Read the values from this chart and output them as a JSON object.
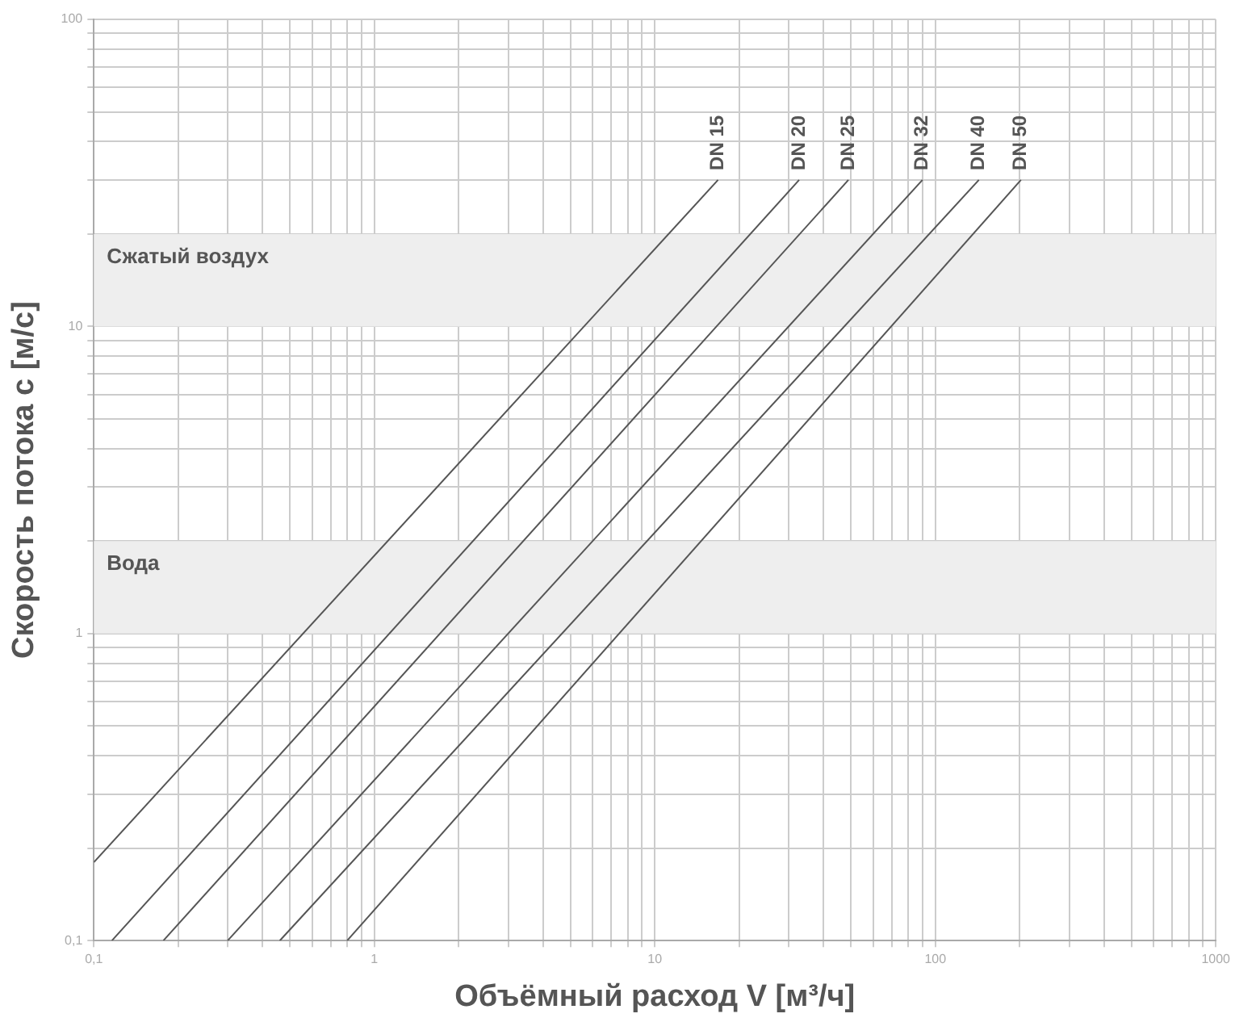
{
  "chart_data": {
    "type": "line",
    "xlabel": "Объёмный расход V [м³/ч]",
    "ylabel": "Скорость потока с [м/с]",
    "log": "xy",
    "grid": true,
    "marker": "none",
    "line_style": "solid",
    "xlim": [
      0.1,
      1000
    ],
    "xticks": [
      {
        "value": 0.1,
        "label": "0,1"
      },
      {
        "value": 0.2,
        "label": null
      },
      {
        "value": 0.3,
        "label": null
      },
      {
        "value": 0.4,
        "label": null
      },
      {
        "value": 0.5,
        "label": null
      },
      {
        "value": 0.6,
        "label": null
      },
      {
        "value": 0.7,
        "label": null
      },
      {
        "value": 0.8,
        "label": null
      },
      {
        "value": 0.9,
        "label": null
      },
      1,
      {
        "value": 2,
        "label": null
      },
      {
        "value": 3,
        "label": null
      },
      {
        "value": 4,
        "label": null
      },
      {
        "value": 5,
        "label": null
      },
      {
        "value": 6,
        "label": null
      },
      {
        "value": 7,
        "label": null
      },
      {
        "value": 8,
        "label": null
      },
      {
        "value": 9,
        "label": null
      },
      10,
      {
        "value": 20,
        "label": null
      },
      {
        "value": 30,
        "label": null
      },
      {
        "value": 40,
        "label": null
      },
      {
        "value": 50,
        "label": null
      },
      {
        "value": 60,
        "label": null
      },
      {
        "value": 70,
        "label": null
      },
      {
        "value": 80,
        "label": null
      },
      {
        "value": 90,
        "label": null
      },
      100,
      {
        "value": 200,
        "label": null
      },
      {
        "value": 300,
        "label": null
      },
      {
        "value": 400,
        "label": null
      },
      {
        "value": 500,
        "label": null
      },
      {
        "value": 600,
        "label": null
      },
      {
        "value": 700,
        "label": null
      },
      {
        "value": 800,
        "label": null
      },
      {
        "value": 900,
        "label": null
      },
      1000
    ],
    "ylim": [
      0.1,
      100
    ],
    "yticks": [
      {
        "value": 0.1,
        "label": "0,1"
      },
      {
        "value": 0.2,
        "label": null
      },
      {
        "value": 0.3,
        "label": null
      },
      {
        "value": 0.4,
        "label": null
      },
      {
        "value": 0.5,
        "label": null
      },
      {
        "value": 0.6,
        "label": null
      },
      {
        "value": 0.7,
        "label": null
      },
      {
        "value": 0.8,
        "label": null
      },
      {
        "value": 0.9,
        "label": null
      },
      1,
      {
        "value": 2,
        "label": null
      },
      {
        "value": 3,
        "label": null
      },
      {
        "value": 4,
        "label": null
      },
      {
        "value": 5,
        "label": null
      },
      {
        "value": 6,
        "label": null
      },
      {
        "value": 7,
        "label": null
      },
      {
        "value": 8,
        "label": null
      },
      {
        "value": 9,
        "label": null
      },
      10,
      {
        "value": 20,
        "label": null
      },
      {
        "value": 30,
        "label": null
      },
      {
        "value": 40,
        "label": null
      },
      {
        "value": 50,
        "label": null
      },
      {
        "value": 60,
        "label": null
      },
      {
        "value": 70,
        "label": null
      },
      {
        "value": 80,
        "label": null
      },
      {
        "value": 90,
        "label": null
      },
      100
    ],
    "bands": [
      {
        "axis": "y",
        "from": 10,
        "to": 20,
        "label": "Сжатый воздух",
        "color": "#eeeeee"
      },
      {
        "axis": "y",
        "from": 1,
        "to": 2,
        "label": "Вода",
        "color": "#eeeeee"
      }
    ],
    "series": [
      {
        "name": "DN 15",
        "color": "#555555",
        "x": [
          0.1,
          16.8
        ],
        "values": [
          0.18,
          30
        ]
      },
      {
        "name": "DN 20",
        "color": "#555555",
        "x": [
          0.116,
          32.7
        ],
        "values": [
          0.1,
          30
        ]
      },
      {
        "name": "DN 25",
        "color": "#555555",
        "x": [
          0.177,
          49
        ],
        "values": [
          0.1,
          30
        ]
      },
      {
        "name": "DN 32",
        "color": "#555555",
        "x": [
          0.3,
          90
        ],
        "values": [
          0.1,
          30
        ]
      },
      {
        "name": "DN 40",
        "color": "#555555",
        "x": [
          0.46,
          143
        ],
        "values": [
          0.1,
          30
        ]
      },
      {
        "name": "DN 50",
        "color": "#555555",
        "x": [
          0.8,
          202
        ],
        "values": [
          0.1,
          30
        ]
      }
    ]
  }
}
